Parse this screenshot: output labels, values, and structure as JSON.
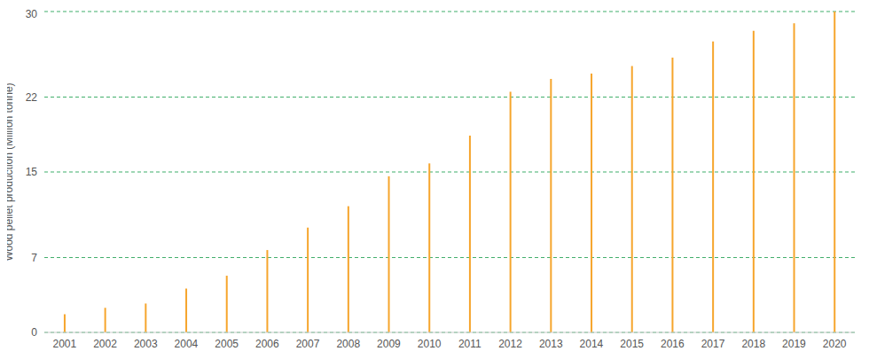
{
  "chart_data": {
    "type": "bar",
    "y_label": "Wood pellet production (Million tonne)",
    "categories": [
      "2001",
      "2002",
      "2003",
      "2004",
      "2005",
      "2006",
      "2007",
      "2008",
      "2009",
      "2010",
      "2011",
      "2012",
      "2013",
      "2014",
      "2015",
      "2016",
      "2017",
      "2018",
      "2019",
      "2020"
    ],
    "values": [
      1.7,
      2.3,
      2.7,
      4.1,
      5.3,
      7.7,
      9.8,
      11.8,
      14.6,
      15.8,
      18.4,
      22.5,
      23.7,
      24.2,
      24.9,
      25.7,
      27.2,
      28.2,
      28.9,
      30
    ],
    "color": "#f6a52c",
    "ylim": [
      0,
      30
    ],
    "yticks": [
      0,
      7,
      15,
      22,
      30
    ],
    "grid": true
  }
}
